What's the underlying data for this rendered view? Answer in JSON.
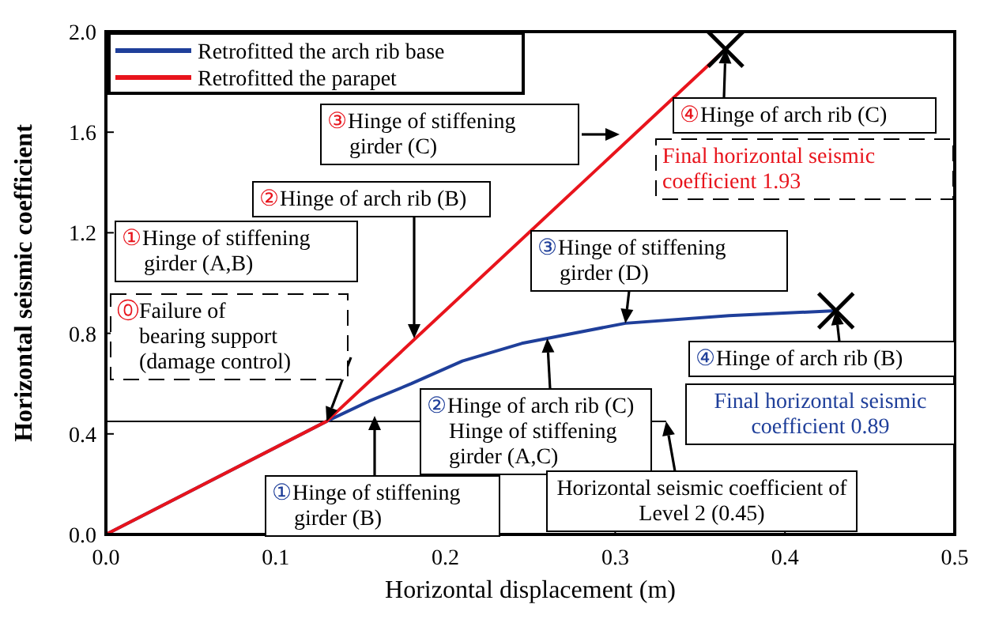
{
  "chart_data": {
    "type": "line",
    "xlabel": "Horizontal displacement (m)",
    "ylabel": "Horizontal seismic coefficient",
    "xlim": [
      0,
      0.5
    ],
    "ylim": [
      0,
      2
    ],
    "xticks": [
      {
        "value": 0,
        "label": "0.0"
      },
      0.1,
      0.2,
      0.3,
      0.4,
      0.5
    ],
    "yticks": [
      {
        "value": 0,
        "label": "0.0"
      },
      0.4,
      0.8,
      1.2,
      1.6,
      {
        "value": 2,
        "label": "2.0"
      }
    ],
    "legend": "top left",
    "grid": false,
    "marker": "none",
    "line_style": "solid",
    "series": [
      {
        "name": "Retrofitted the arch rib base",
        "color": "#1f3f9a",
        "x": [
          0,
          0.13,
          0.155,
          0.18,
          0.21,
          0.245,
          0.26,
          0.306,
          0.367,
          0.43
        ],
        "values": [
          0,
          0.45,
          0.53,
          0.6,
          0.69,
          0.76,
          0.78,
          0.84,
          0.87,
          0.89
        ]
      },
      {
        "name": "Retrofitted the parapet",
        "color": "#e8141c",
        "x": [
          0,
          0.13,
          0.365
        ],
        "values": [
          0,
          0.45,
          1.93
        ]
      }
    ],
    "ref_lines": [
      {
        "axis": "y",
        "value": 0.45,
        "label": "Horizontal seismic coefficient of Level 2 (0.45)"
      }
    ],
    "annotations": [
      {
        "text": "⓪Failure of bearing support (damage control)",
        "x": 0.13,
        "y": 0.45
      },
      "①Hinge of stiffening girder (A,B)",
      "②Hinge of arch rib (B)",
      "③Hinge of stiffening girder (C)",
      {
        "text": "④Hinge of arch rib (C)",
        "x": 0.365,
        "y": 1.93
      },
      "Final horizontal seismic coefficient 1.93",
      "①Hinge of stiffening girder (B)",
      {
        "text": "②Hinge of arch rib (C) Hinge of stiffening girder (A,C)",
        "x": 0.26,
        "y": 0.78
      },
      {
        "text": "③Hinge of stiffening girder (D)",
        "x": 0.306,
        "y": 0.84
      },
      {
        "text": "④Hinge of arch rib (B)",
        "x": 0.43,
        "y": 0.89
      },
      "Final horizontal seismic coefficient 0.89"
    ]
  }
}
